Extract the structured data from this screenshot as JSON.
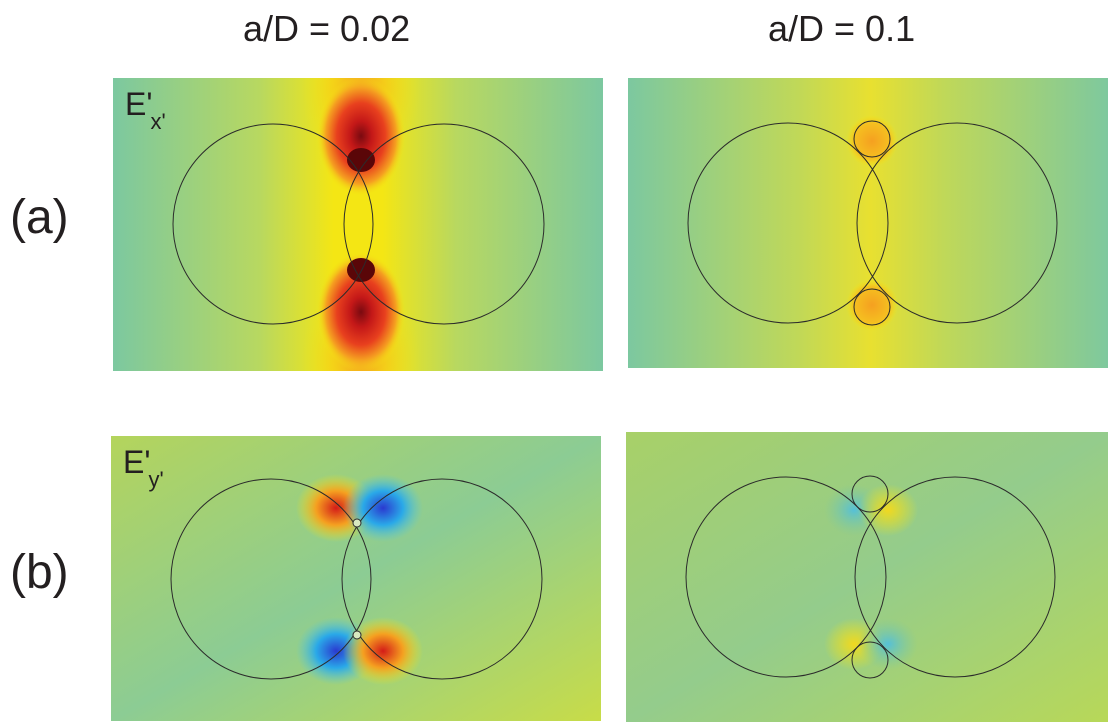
{
  "columns": [
    {
      "title": "a/D = 0.02"
    },
    {
      "title": "a/D = 0.1"
    }
  ],
  "rows": [
    {
      "label": "(a)",
      "field_main": "E'",
      "field_sub": "x'"
    },
    {
      "label": "(b)",
      "field_main": "E'",
      "field_sub": "y'"
    }
  ],
  "colors": {
    "background_green": "#7cc8a0",
    "yellow": "#f2e610",
    "orange": "#f5a020",
    "red": "#e2201e",
    "dark_red": "#7a0a10",
    "blue": "#2aa9e8",
    "cyan": "#55c8dd",
    "outline": "#2b2b2b"
  }
}
